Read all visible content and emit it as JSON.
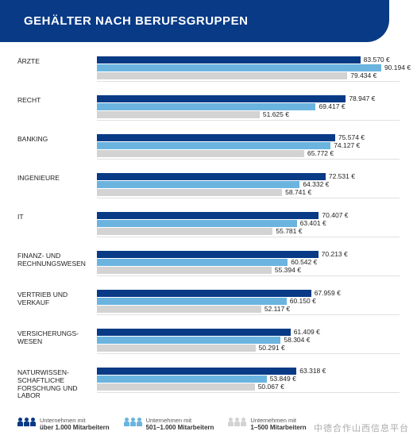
{
  "header": {
    "title": "GEHÄLTER NACH BERUFSGRUPPEN",
    "background": "#083a86",
    "fontsize": 15
  },
  "chart": {
    "type": "bar",
    "max_value": 96000,
    "bar_colors": [
      "#083a86",
      "#6bb4df",
      "#d3d3d3"
    ],
    "value_suffix": " €",
    "rows": [
      {
        "label": "ÄRZTE",
        "values": [
          83570,
          90194,
          79434
        ]
      },
      {
        "label": "RECHT",
        "values": [
          78947,
          69417,
          51625
        ]
      },
      {
        "label": "BANKING",
        "values": [
          75574,
          74127,
          65772
        ]
      },
      {
        "label": "INGENIEURE",
        "values": [
          72531,
          64332,
          58741
        ]
      },
      {
        "label": "IT",
        "values": [
          70407,
          63401,
          55781
        ]
      },
      {
        "label": "FINANZ- UND RECHNUNGSWESEN",
        "values": [
          70213,
          60542,
          55394
        ]
      },
      {
        "label": "VERTRIEB UND VERKAUF",
        "values": [
          67959,
          60150,
          52117
        ]
      },
      {
        "label": "VERSICHERUNGS-WESEN",
        "values": [
          61409,
          58304,
          50291
        ]
      },
      {
        "label": "NATURWISSEN-SCHAFTLICHE FORSCHUNG UND LABOR",
        "values": [
          63318,
          53849,
          50067
        ]
      }
    ]
  },
  "legend": {
    "intro": "Unternehmen mit",
    "items": [
      {
        "color": "#083a86",
        "text": "über 1.000 Mitarbeitern"
      },
      {
        "color": "#6bb4df",
        "text": "501–1.000 Mitarbeitern"
      },
      {
        "color": "#d3d3d3",
        "text": "1–500 Mitarbeitern"
      }
    ]
  },
  "watermark": "中德合作山西信息平台"
}
